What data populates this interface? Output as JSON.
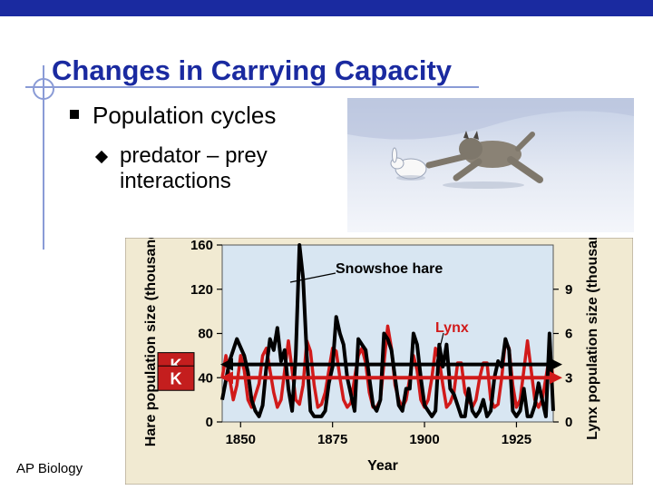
{
  "slide": {
    "title": "Changes in Carrying Capacity",
    "bullet1": "Population cycles",
    "bullet2": "predator – prey interactions",
    "footer": "AP Biology"
  },
  "colors": {
    "title": "#1a2aa0",
    "hare": "#000000",
    "lynx": "#d11a1a",
    "plot_bg": "#d8e6f2",
    "panel_bg": "#f1ead2"
  },
  "photo": {
    "subject": "lynx chasing snowshoe hare on snow"
  },
  "chart_data": {
    "type": "line",
    "xlabel": "Year",
    "ylabel_left": "Hare population size (thousands)",
    "ylabel_right": "Lynx population size (thousands)",
    "x_ticks": [
      "1850",
      "1875",
      "1900",
      "1925"
    ],
    "y_left_ticks": [
      "0",
      "40",
      "80",
      "120",
      "160"
    ],
    "y_right_ticks": [
      "0",
      "3",
      "6",
      "9"
    ],
    "xlim": [
      1845,
      1935
    ],
    "ylim_left": [
      0,
      160
    ],
    "ylim_right": [
      0,
      12
    ],
    "grid": false,
    "annotations": {
      "hare": "Snowshoe hare",
      "lynx": "Lynx"
    },
    "k_markers": [
      {
        "label": "K",
        "series": "Hare",
        "value": 52
      },
      {
        "label": "K",
        "series": "Lynx",
        "value": 3
      }
    ],
    "series": [
      {
        "name": "Snowshoe hare",
        "axis": "left",
        "x": [
          1845,
          1847,
          1849,
          1851,
          1852,
          1853,
          1854,
          1855,
          1856,
          1857,
          1858,
          1859,
          1860,
          1861,
          1862,
          1863,
          1864,
          1865,
          1866,
          1867,
          1868,
          1869,
          1870,
          1871,
          1872,
          1873,
          1874,
          1875,
          1876,
          1877,
          1878,
          1879,
          1880,
          1881,
          1882,
          1883,
          1884,
          1885,
          1886,
          1887,
          1888,
          1889,
          1890,
          1891,
          1892,
          1893,
          1894,
          1895,
          1896,
          1897,
          1898,
          1899,
          1900,
          1901,
          1902,
          1903,
          1904,
          1905,
          1906,
          1907,
          1908,
          1909,
          1910,
          1911,
          1912,
          1913,
          1914,
          1915,
          1916,
          1917,
          1918,
          1919,
          1920,
          1921,
          1922,
          1923,
          1924,
          1925,
          1926,
          1927,
          1928,
          1929,
          1930,
          1931,
          1932,
          1933,
          1934,
          1935
        ],
        "values": [
          20,
          55,
          75,
          60,
          45,
          20,
          10,
          5,
          15,
          50,
          75,
          65,
          85,
          55,
          65,
          30,
          10,
          60,
          160,
          130,
          60,
          10,
          5,
          5,
          5,
          10,
          35,
          50,
          95,
          80,
          70,
          40,
          25,
          10,
          75,
          70,
          65,
          40,
          15,
          10,
          20,
          80,
          75,
          65,
          40,
          15,
          10,
          30,
          30,
          80,
          70,
          40,
          15,
          10,
          5,
          10,
          70,
          50,
          70,
          30,
          25,
          15,
          5,
          5,
          30,
          10,
          5,
          10,
          20,
          5,
          10,
          40,
          55,
          50,
          75,
          65,
          10,
          5,
          10,
          30,
          5,
          5,
          15,
          35,
          20,
          5,
          80,
          10
        ]
      },
      {
        "name": "Lynx",
        "axis": "right",
        "x": [
          1845,
          1846,
          1847,
          1848,
          1849,
          1850,
          1851,
          1852,
          1853,
          1854,
          1855,
          1856,
          1857,
          1858,
          1859,
          1860,
          1861,
          1862,
          1863,
          1864,
          1865,
          1866,
          1867,
          1868,
          1869,
          1870,
          1871,
          1872,
          1873,
          1874,
          1875,
          1876,
          1877,
          1878,
          1879,
          1880,
          1881,
          1882,
          1883,
          1884,
          1885,
          1886,
          1887,
          1888,
          1889,
          1890,
          1891,
          1892,
          1893,
          1894,
          1895,
          1896,
          1897,
          1898,
          1899,
          1900,
          1901,
          1902,
          1903,
          1904,
          1905,
          1906,
          1907,
          1908,
          1909,
          1910,
          1911,
          1912,
          1913,
          1914,
          1915,
          1916,
          1917,
          1918,
          1919,
          1920,
          1921,
          1922,
          1923,
          1924,
          1925,
          1926,
          1927,
          1928,
          1929,
          1930,
          1931,
          1932,
          1933,
          1934,
          1935
        ],
        "values": [
          3,
          4.5,
          3,
          1.5,
          2.5,
          4.5,
          3.5,
          1.5,
          1,
          1.8,
          2.6,
          4.5,
          5,
          3.5,
          2,
          1,
          1.5,
          3.5,
          5.5,
          3.5,
          1.5,
          1.2,
          2.5,
          5.5,
          4.8,
          2.5,
          1,
          1.2,
          2,
          3.5,
          5,
          4.8,
          3,
          1.5,
          1,
          1.3,
          3,
          4.5,
          5,
          4,
          2,
          1,
          1,
          1.5,
          4,
          6.5,
          5,
          2.5,
          1.5,
          1,
          1.5,
          3,
          4.5,
          3.5,
          1.5,
          1,
          1.5,
          3,
          5,
          4.2,
          2.5,
          1,
          1.3,
          2,
          4,
          4,
          2,
          1.5,
          1,
          1.5,
          3,
          4,
          4,
          1.5,
          1,
          1.2,
          3,
          5.5,
          5,
          2.5,
          1,
          1.5,
          3.5,
          5.5,
          3.5,
          1.5,
          1,
          1.5,
          3,
          4.5,
          3
        ]
      }
    ]
  }
}
